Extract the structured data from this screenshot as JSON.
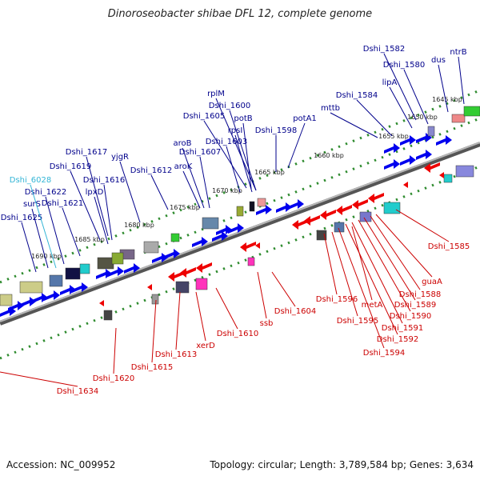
{
  "title": "Dinoroseobacter shibae DFL 12, complete genome",
  "accession": "Accession: NC_009952",
  "summary": "Topology: circular; Length: 3,789,584 bp; Genes: 3,634",
  "colors": {
    "forward_label": "#00008b",
    "reverse_label": "#cc0000",
    "rna_label": "#33b5d6",
    "forward_gene": "#0000ee",
    "reverse_gene": "#ee0000",
    "tick": "#2e8b2e",
    "backbone": "#888888"
  },
  "ticks": [
    {
      "label": "1645 kbp",
      "kbp": 1645
    },
    {
      "label": "1650 kbp",
      "kbp": 1650
    },
    {
      "label": "1655 kbp",
      "kbp": 1655
    },
    {
      "label": "1660 kbp",
      "kbp": 1660
    },
    {
      "label": "1665 kbp",
      "kbp": 1665
    },
    {
      "label": "1670 kbp",
      "kbp": 1670
    },
    {
      "label": "1675 kbp",
      "kbp": 1675
    },
    {
      "label": "1680 kbp",
      "kbp": 1680
    },
    {
      "label": "1685 kbp",
      "kbp": 1685
    },
    {
      "label": "1690 kbp",
      "kbp": 1690
    }
  ],
  "forward_labels": [
    "Dshi_1582",
    "ntrB",
    "Dshi_1580",
    "dus",
    "lipA",
    "Dshi_1584",
    "mttb",
    "rplM",
    "Dshi_1600",
    "Dshi_1605",
    "potB",
    "rpsI",
    "Dshi_1603",
    "Dshi_1598",
    "potA1",
    "aroB",
    "Dshi_1607",
    "aroK",
    "Dshi_1612",
    "yjgR",
    "Dshi_1617",
    "Dshi_1619",
    "Dshi_1616",
    "lpxD",
    "Dshi_1622",
    "surS",
    "Dshi_1621",
    "Dshi_1625"
  ],
  "rna_labels": [
    "Dshi_6028"
  ],
  "reverse_labels": [
    "Dshi_1585",
    "guaA",
    "Dshi_1588",
    "Dshi_1589",
    "Dshi_1590",
    "Dshi_1591",
    "Dshi_1592",
    "Dshi_1594",
    "metA",
    "Dshi_1595",
    "Dshi_1596",
    "Dshi_1604",
    "ssb",
    "Dshi_1610",
    "xerD",
    "Dshi_1613",
    "Dshi_1615",
    "Dshi_1620",
    "Dshi_1634"
  ]
}
